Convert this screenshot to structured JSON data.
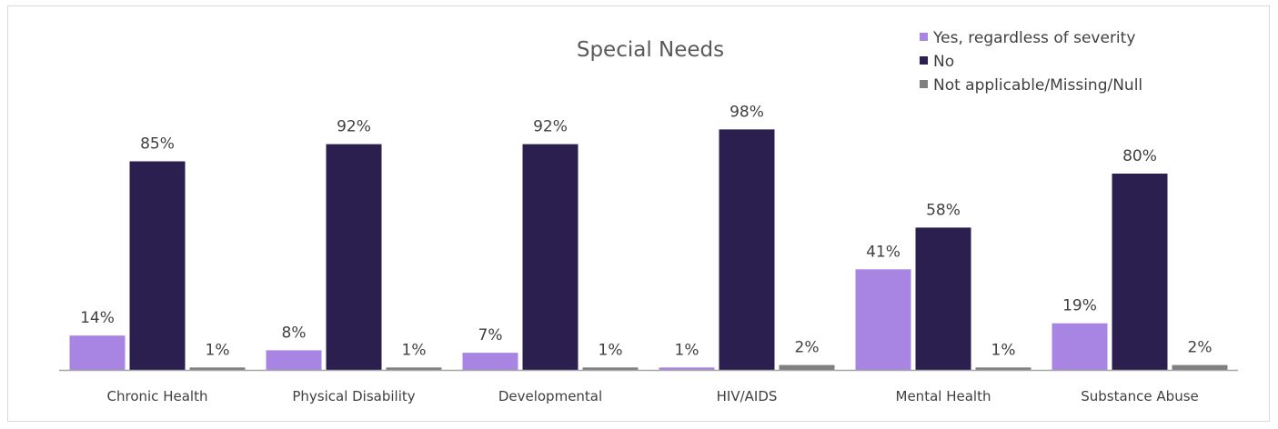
{
  "chart_data": {
    "type": "bar",
    "title": "Special Needs",
    "categories": [
      "Chronic Health",
      "Physical Disability",
      "Developmental",
      "HIV/AIDS",
      "Mental Health",
      "Substance Abuse"
    ],
    "series": [
      {
        "name": "Yes, regardless of severity",
        "color": "#a985e3",
        "values": [
          14,
          8,
          7,
          1,
          41,
          19
        ],
        "labels": [
          "14%",
          "8%",
          "7%",
          "1%",
          "41%",
          "19%"
        ]
      },
      {
        "name": "No",
        "color": "#2a1f4e",
        "values": [
          85,
          92,
          92,
          98,
          58,
          80
        ],
        "labels": [
          "85%",
          "92%",
          "92%",
          "98%",
          "58%",
          "80%"
        ]
      },
      {
        "name": "Not applicable/Missing/Null",
        "color": "#7f7f7f",
        "values": [
          1,
          1,
          1,
          2,
          1,
          2
        ],
        "labels": [
          "1%",
          "1%",
          "1%",
          "2%",
          "1%",
          "2%"
        ]
      }
    ],
    "ylim": [
      0,
      100
    ],
    "grid": false,
    "legend_position": "top-right"
  }
}
